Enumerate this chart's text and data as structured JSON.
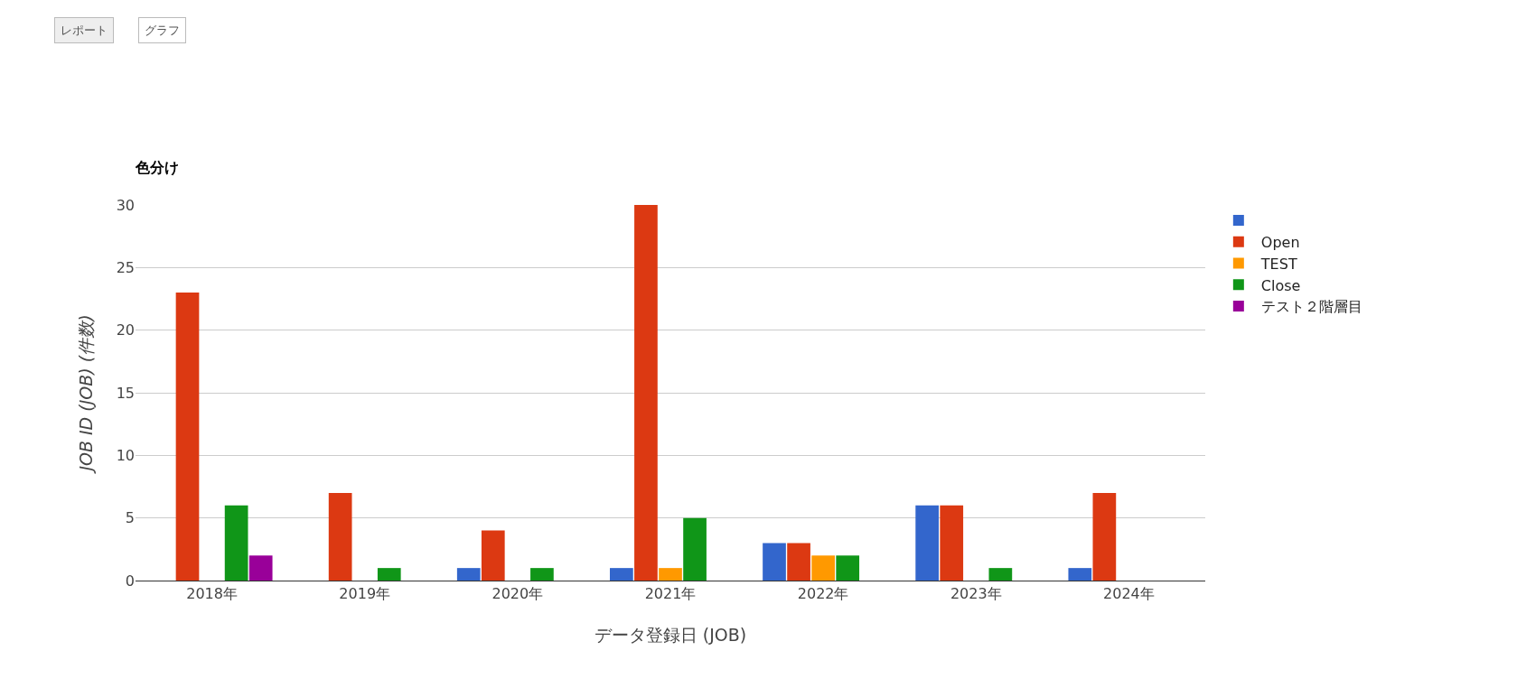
{
  "chart_data": {
    "type": "bar",
    "title": "色分け",
    "xlabel": "データ登録日 (JOB)",
    "ylabel": "JOB ID (JOB) (件数)",
    "annotations": [
      "レポート",
      "グラフ"
    ],
    "categories": [
      "2018年",
      "2019年",
      "2020年",
      "2021年",
      "2022年",
      "2023年",
      "2024年"
    ],
    "series": [
      {
        "color": "#3366cc",
        "values": [
          0,
          0,
          1,
          1,
          3,
          6,
          1
        ]
      },
      {
        "name": "Open",
        "color": "#dc3912",
        "values": [
          23,
          7,
          4,
          30,
          3,
          6,
          7
        ]
      },
      {
        "name": "TEST",
        "color": "#ff9900",
        "values": [
          0,
          0,
          0,
          1,
          2,
          0,
          0
        ]
      },
      {
        "name": "Close",
        "color": "#109618",
        "values": [
          6,
          1,
          1,
          5,
          2,
          1,
          0
        ]
      },
      {
        "name": "テスト２階層目",
        "color": "#990099",
        "values": [
          2,
          0,
          0,
          0,
          0,
          0,
          0
        ]
      }
    ],
    "ylim": [
      0,
      30
    ],
    "yticks": [
      0,
      5,
      10,
      15,
      20,
      25,
      30
    ],
    "grid": "y",
    "legend": "top right"
  }
}
